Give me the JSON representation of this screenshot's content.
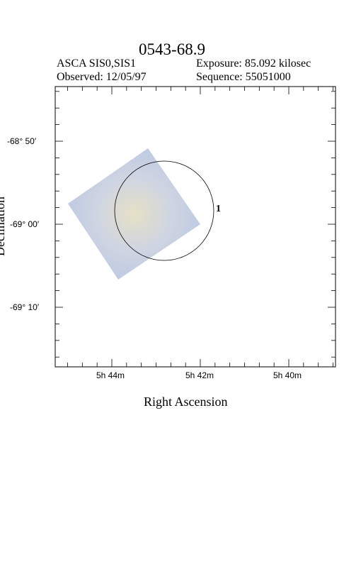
{
  "title": "0543-68.9",
  "header": {
    "instrument": "ASCA SIS0,SIS1",
    "observed": "Observed: 12/05/97",
    "exposure": "Exposure: 85.092 kilosec",
    "sequence": "Sequence: 55051000"
  },
  "axes": {
    "xlabel": "Right Ascension",
    "ylabel": "Declination",
    "x_ticks": [
      "5h 44m",
      "5h 42m",
      "5h 40m"
    ],
    "y_ticks": [
      "-68° 50′",
      "-69° 00′",
      "-69° 10′"
    ]
  },
  "source_marker": "1",
  "colors": {
    "image_tint": "#c7d1e6",
    "frame": "#000000"
  }
}
